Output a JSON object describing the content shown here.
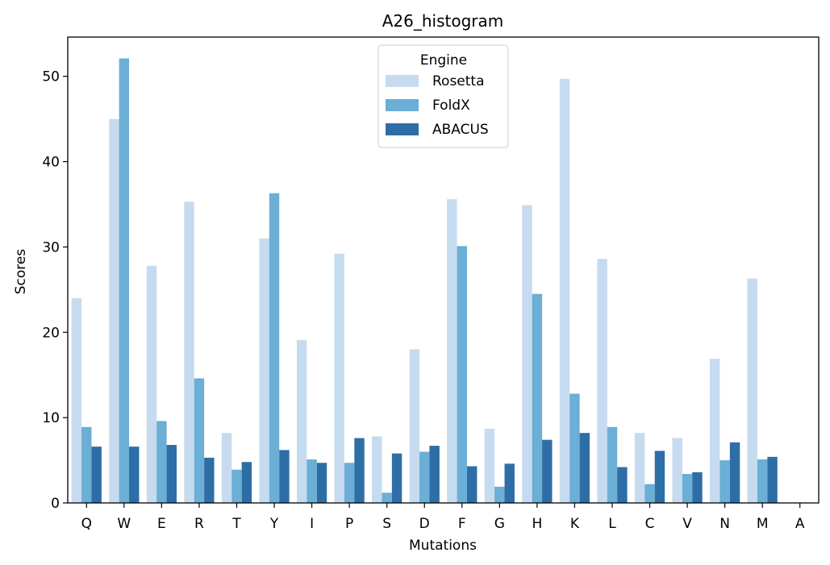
{
  "chart_data": {
    "type": "bar",
    "title": "A26_histogram",
    "xlabel": "Mutations",
    "ylabel": "Scores",
    "ylim": [
      0,
      54.6
    ],
    "yticks": [
      0,
      10,
      20,
      30,
      40,
      50
    ],
    "grid": false,
    "legend": {
      "title": "Engine",
      "placement": "top-center"
    },
    "categories": [
      "Q",
      "W",
      "E",
      "R",
      "T",
      "Y",
      "I",
      "P",
      "S",
      "D",
      "F",
      "G",
      "H",
      "K",
      "L",
      "C",
      "V",
      "N",
      "M",
      "A"
    ],
    "series": [
      {
        "name": "Rosetta",
        "color": "#c6dbef",
        "values": [
          24.0,
          45.0,
          27.8,
          35.3,
          8.2,
          31.0,
          19.1,
          29.2,
          7.8,
          18.0,
          35.6,
          8.7,
          34.9,
          49.7,
          28.6,
          8.2,
          7.6,
          16.9,
          26.3,
          0
        ]
      },
      {
        "name": "FoldX",
        "color": "#6baed6",
        "values": [
          8.9,
          52.1,
          9.6,
          14.6,
          3.9,
          36.3,
          5.1,
          4.7,
          1.2,
          6.0,
          30.1,
          1.9,
          24.5,
          12.8,
          8.9,
          2.2,
          3.4,
          5.0,
          5.1,
          0
        ]
      },
      {
        "name": "ABACUS",
        "color": "#2e6ea6",
        "values": [
          6.6,
          6.6,
          6.8,
          5.3,
          4.8,
          6.2,
          4.7,
          7.6,
          5.8,
          6.7,
          4.3,
          4.6,
          7.4,
          8.2,
          4.2,
          6.1,
          3.6,
          7.1,
          5.4,
          0
        ]
      }
    ]
  }
}
